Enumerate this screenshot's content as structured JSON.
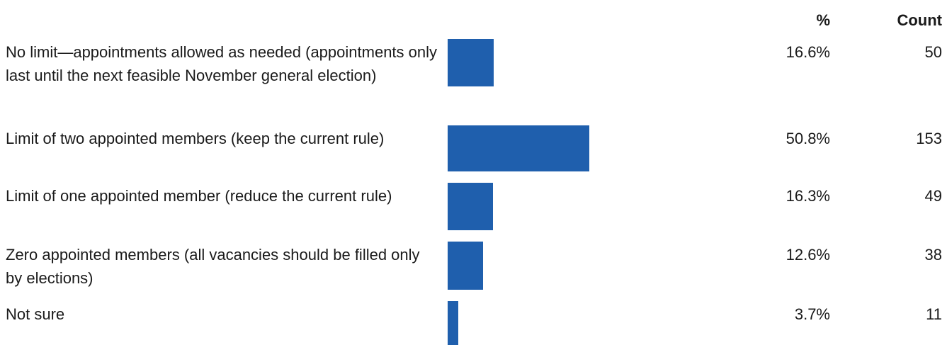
{
  "chart_data": {
    "type": "barh",
    "headers": {
      "percent": "%",
      "count": "Count"
    },
    "categories": [
      "No limit—appointments allowed as needed (appointments only last until the next feasible November general election)",
      "Limit of two appointed members (keep the current rule)",
      "Limit of one appointed member (reduce the current rule)",
      "Zero appointed members (all vacancies should be filled only by elections)",
      "Not sure"
    ],
    "values": [
      16.6,
      50.8,
      16.3,
      12.6,
      3.7
    ],
    "value_labels": [
      "16.6%",
      "50.8%",
      "16.3%",
      "12.6%",
      "3.7%"
    ],
    "counts": [
      50,
      153,
      49,
      38,
      11
    ],
    "color": "#1f5fad"
  }
}
